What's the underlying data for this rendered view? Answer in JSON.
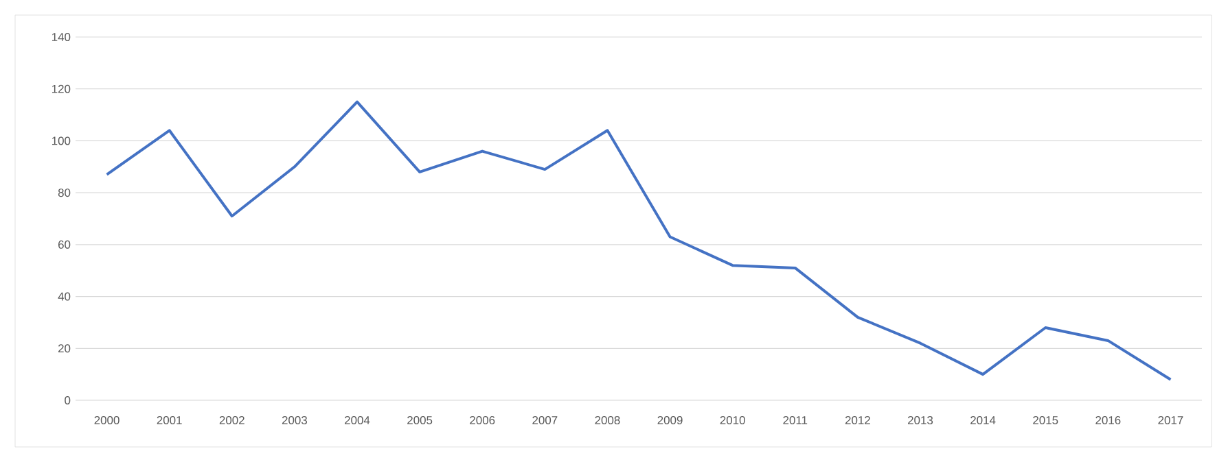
{
  "chart_data": {
    "type": "line",
    "categories": [
      "2000",
      "2001",
      "2002",
      "2003",
      "2004",
      "2005",
      "2006",
      "2007",
      "2008",
      "2009",
      "2010",
      "2011",
      "2012",
      "2013",
      "2014",
      "2015",
      "2016",
      "2017"
    ],
    "series": [
      {
        "color": "#4472c4",
        "values": [
          87,
          104,
          71,
          90,
          115,
          88,
          96,
          89,
          104,
          63,
          52,
          51,
          32,
          22,
          10,
          28,
          23,
          8
        ]
      }
    ],
    "ylim": [
      0,
      140
    ],
    "yticks": [
      0,
      20,
      40,
      60,
      80,
      100,
      120,
      140
    ],
    "grid": "y",
    "marker": "none",
    "line_style": "solid"
  }
}
